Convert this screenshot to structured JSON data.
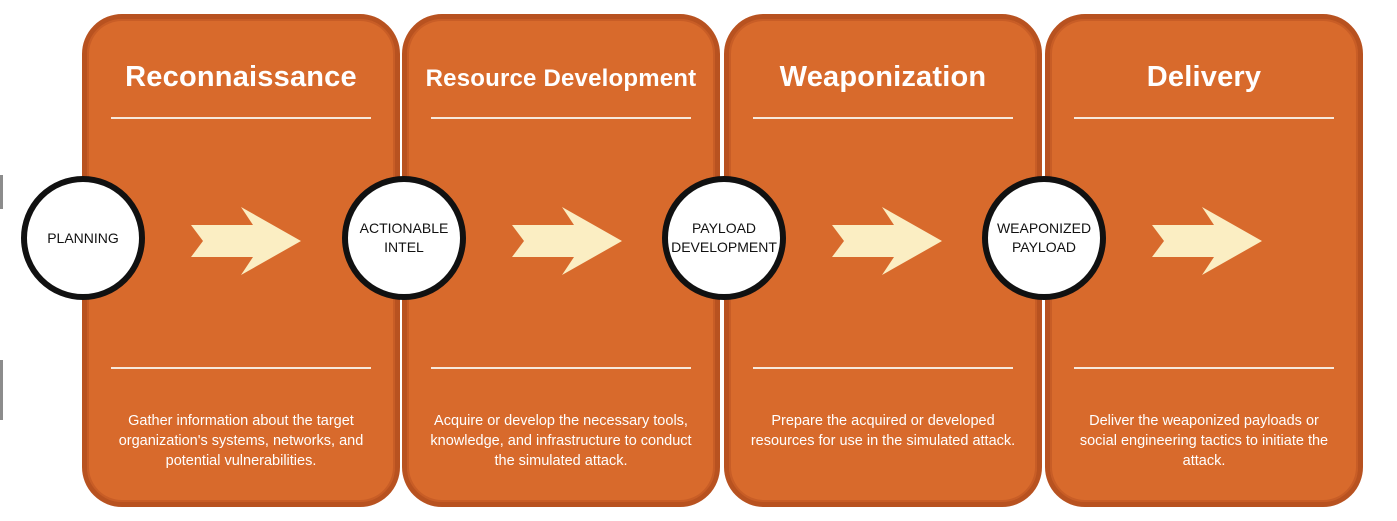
{
  "stages": [
    {
      "title": "Reconnaissance",
      "description": "Gather information about the target organization's systems, networks, and potential vulnerabilities."
    },
    {
      "title": "Resource Development",
      "description": "Acquire or develop the necessary tools, knowledge, and infrastructure to conduct the simulated attack."
    },
    {
      "title": "Weaponization",
      "description": "Prepare the acquired or developed resources for use in the simulated attack."
    },
    {
      "title": "Delivery",
      "description": "Deliver the weaponized payloads or social engineering tactics to initiate the attack."
    }
  ],
  "nodes": [
    {
      "label": "PLANNING"
    },
    {
      "label": "ACTIONABLE\nINTEL"
    },
    {
      "label": "PAYLOAD\nDEVELOPMENT"
    },
    {
      "label": "WEAPONIZED\nPAYLOAD"
    }
  ],
  "colors": {
    "card_fill": "#d86a2c",
    "card_border": "#b85220",
    "arrow_fill": "#fbeec3",
    "node_fill": "#ffffff",
    "node_border": "#111111"
  },
  "icons": {
    "flow_arrow": "right-chevron-arrow-icon"
  }
}
